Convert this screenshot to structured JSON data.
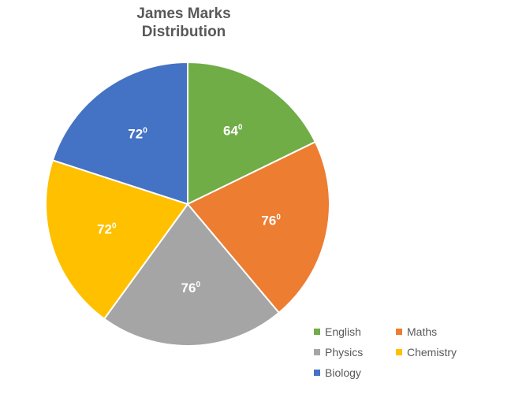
{
  "chart_data": {
    "type": "pie",
    "title": [
      "James Marks",
      "Distribution"
    ],
    "categories": [
      "English",
      "Maths",
      "Physics",
      "Chemistry",
      "Biology"
    ],
    "values": [
      64,
      76,
      76,
      72,
      72
    ],
    "labels": [
      "64",
      "76",
      "76",
      "72",
      "72"
    ],
    "label_superscript": "0",
    "colors": [
      "#70AD47",
      "#ED7D31",
      "#A5A5A5",
      "#FFC000",
      "#4472C4"
    ],
    "start_angle_deg": 0,
    "direction": "clockwise",
    "legend_position": "bottom-right"
  }
}
